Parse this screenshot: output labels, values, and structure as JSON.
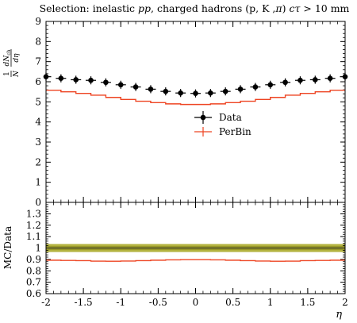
{
  "title_parts": {
    "prefix": "Selection: inelastic ",
    "pp": "pp",
    "middle": ", charged hadrons (p, K ,",
    "pi": "π",
    "close": ") ",
    "ctau": "cτ",
    "suffix": " > 10 mm"
  },
  "ylabel": {
    "frac_num": "1",
    "frac_den": "N",
    "deriv_num": "dN",
    "deriv_num_sub": "ch",
    "deriv_den": "dη"
  },
  "ratio_ylabel": "MC/Data",
  "xlabel": "η",
  "legend": {
    "data_label": "Data",
    "mc_label": "PerBin"
  },
  "colors": {
    "data": "#000000",
    "mc": "#ee4422",
    "band": "#a6a61e"
  },
  "chart_data": [
    {
      "type": "line",
      "panel": "main",
      "x_edges": [
        -2.0,
        -1.8,
        -1.6,
        -1.4,
        -1.2,
        -1.0,
        -0.8,
        -0.6,
        -0.4,
        -0.2,
        0.0,
        0.2,
        0.4,
        0.6,
        0.8,
        1.0,
        1.2,
        1.4,
        1.6,
        1.8,
        2.0
      ],
      "xlim": [
        -2,
        2
      ],
      "ylim": [
        0,
        9
      ],
      "x_ticks": [
        "-2",
        "-1.5",
        "-1",
        "-0.5",
        "0",
        "0.5",
        "1",
        "1.5",
        "2"
      ],
      "y_ticks": [
        "0",
        "1",
        "2",
        "3",
        "4",
        "5",
        "6",
        "7",
        "8",
        "9"
      ],
      "series": [
        {
          "name": "Data",
          "style": "points-with-errors",
          "values": [
            6.25,
            6.17,
            6.1,
            6.07,
            5.97,
            5.85,
            5.74,
            5.63,
            5.52,
            5.44,
            5.42,
            5.44,
            5.52,
            5.63,
            5.74,
            5.85,
            5.97,
            6.07,
            6.1,
            6.17,
            6.25
          ],
          "errors": [
            0.2,
            0.2,
            0.2,
            0.2,
            0.2,
            0.2,
            0.2,
            0.2,
            0.2,
            0.2,
            0.2,
            0.2,
            0.2,
            0.2,
            0.2,
            0.2,
            0.2,
            0.2,
            0.2,
            0.2,
            0.2
          ]
        },
        {
          "name": "PerBin",
          "style": "step",
          "values": [
            5.58,
            5.5,
            5.42,
            5.33,
            5.22,
            5.12,
            5.03,
            4.96,
            4.9,
            4.87,
            4.87,
            4.9,
            4.96,
            5.03,
            5.12,
            5.22,
            5.33,
            5.42,
            5.5,
            5.58
          ]
        }
      ]
    },
    {
      "type": "line",
      "panel": "ratio",
      "x_edges": [
        -2.0,
        -1.8,
        -1.6,
        -1.4,
        -1.2,
        -1.0,
        -0.8,
        -0.6,
        -0.4,
        -0.2,
        0.0,
        0.2,
        0.4,
        0.6,
        0.8,
        1.0,
        1.2,
        1.4,
        1.6,
        1.8,
        2.0
      ],
      "xlim": [
        -2,
        2
      ],
      "ylim": [
        0.6,
        1.4
      ],
      "y_ticks": [
        "0.6",
        "0.7",
        "0.8",
        "0.9",
        "1",
        "1.1",
        "1.2",
        "1.3"
      ],
      "band": {
        "center": 1.0,
        "halfwidth": 0.035
      },
      "series": [
        {
          "name": "PerBin",
          "style": "step",
          "values": [
            0.893,
            0.891,
            0.889,
            0.885,
            0.884,
            0.886,
            0.889,
            0.893,
            0.896,
            0.898,
            0.898,
            0.896,
            0.893,
            0.889,
            0.886,
            0.884,
            0.885,
            0.889,
            0.891,
            0.893
          ]
        }
      ]
    }
  ]
}
